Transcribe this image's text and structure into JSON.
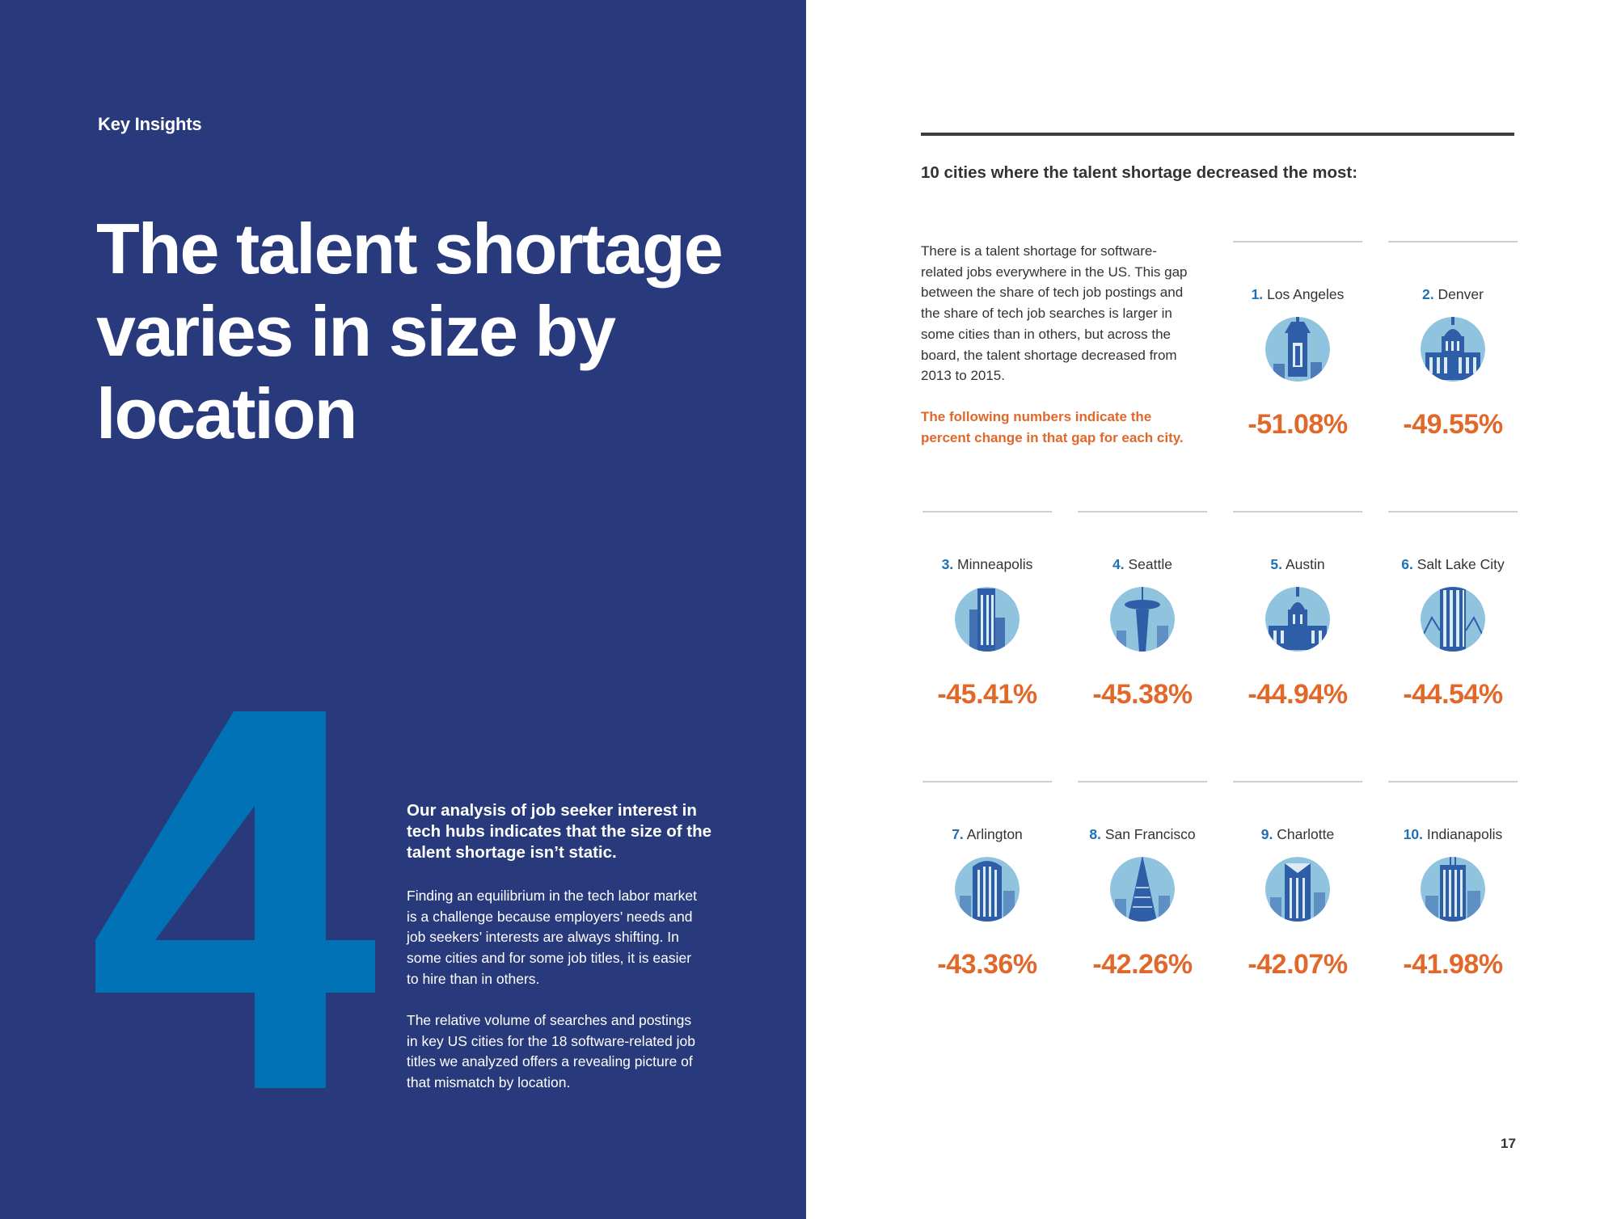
{
  "left": {
    "kicker": "Key Insights",
    "headline": "The talent shortage varies in size by location",
    "big_number": "4",
    "lead": "Our analysis of job seeker interest in tech hubs indicates that the size of the talent shortage isn’t static.",
    "para1": "Finding an equilibrium in the tech labor market is a challenge because employers’ needs and job seekers’ interests are always shifting. In some cities and for some job titles, it is easier to hire than in others.",
    "para2": "The relative volume of searches and postings in key US cities for the 18 software-related job titles we analyzed offers a revealing picture of that mismatch by location."
  },
  "right": {
    "subtitle": "10 cities where the talent shortage decreased the most:",
    "intro": "There is a talent shortage for software-related jobs everywhere in the US. This gap between the share of tech job postings and the share of tech job searches is larger in some cities than in others, but across the board, the talent shortage decreased from 2013 to 2015.",
    "note": "The following numbers indicate the percent change in that gap for each city.",
    "page_number": "17",
    "cities": [
      {
        "rank": "1.",
        "name": "Los Angeles",
        "change": "-51.08%",
        "icon": "los-angeles-skyline-icon"
      },
      {
        "rank": "2.",
        "name": "Denver",
        "change": "-49.55%",
        "icon": "denver-capitol-icon"
      },
      {
        "rank": "3.",
        "name": "Minneapolis",
        "change": "-45.41%",
        "icon": "minneapolis-skyline-icon"
      },
      {
        "rank": "4.",
        "name": "Seattle",
        "change": "-45.38%",
        "icon": "seattle-space-needle-icon"
      },
      {
        "rank": "5.",
        "name": "Austin",
        "change": "-44.94%",
        "icon": "austin-capitol-icon"
      },
      {
        "rank": "6.",
        "name": "Salt Lake City",
        "change": "-44.54%",
        "icon": "salt-lake-city-tower-icon"
      },
      {
        "rank": "7.",
        "name": "Arlington",
        "change": "-43.36%",
        "icon": "arlington-tower-icon"
      },
      {
        "rank": "8.",
        "name": "San Francisco",
        "change": "-42.26%",
        "icon": "san-francisco-pyramid-icon"
      },
      {
        "rank": "9.",
        "name": "Charlotte",
        "change": "-42.07%",
        "icon": "charlotte-tower-icon"
      },
      {
        "rank": "10.",
        "name": "Indianapolis",
        "change": "-41.98%",
        "icon": "indianapolis-tower-icon"
      }
    ]
  },
  "colors": {
    "left_panel_bg": "#283a7c",
    "big_number": "#0072b5",
    "accent_orange": "#e0682a",
    "rank_blue": "#1f70b5",
    "icon_circle": "#8fc3de",
    "icon_building": "#2f5ea9"
  }
}
